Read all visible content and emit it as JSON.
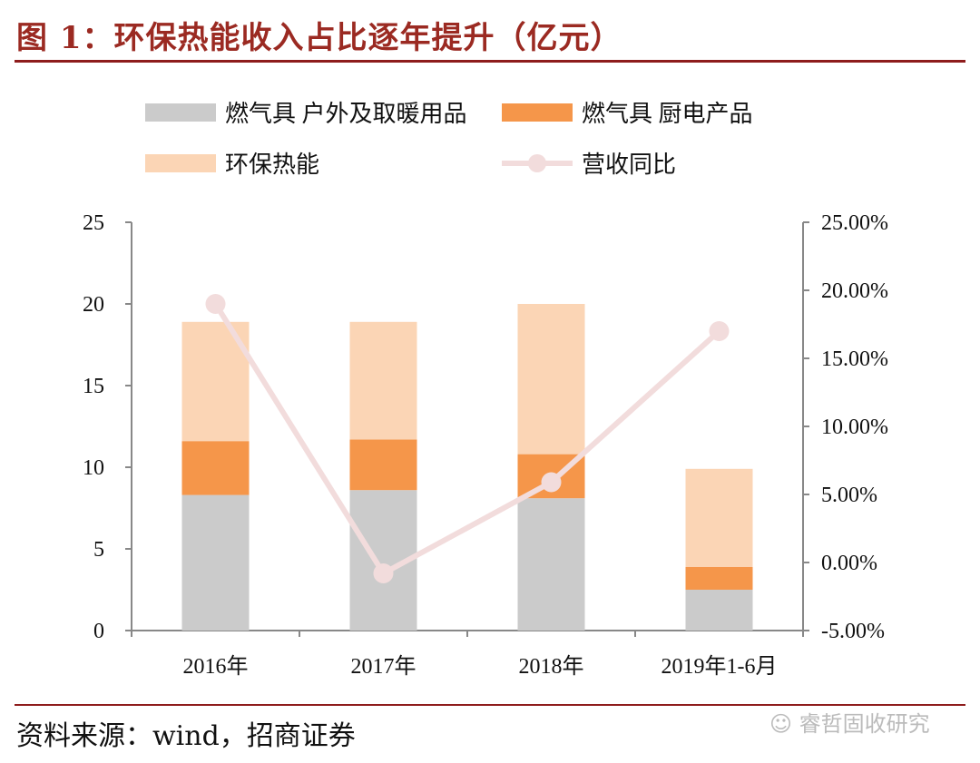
{
  "title": "图 1：环保热能收入占比逐年提升（亿元）",
  "source": "资料来源：wind，招商证券",
  "watermark": "睿哲固收研究",
  "chart_data": {
    "type": "bar",
    "stacked": true,
    "categories": [
      "2016年",
      "2017年",
      "2018年",
      "2019年1-6月"
    ],
    "series": [
      {
        "name": "燃气具 户外及取暖用品",
        "type": "bar",
        "axis": "left",
        "color": "#cbcbcb",
        "values": [
          8.3,
          8.6,
          8.1,
          2.5
        ]
      },
      {
        "name": "燃气具 厨电产品",
        "type": "bar",
        "axis": "left",
        "color": "#f5964a",
        "values": [
          3.3,
          3.1,
          2.7,
          1.4
        ]
      },
      {
        "name": "环保热能",
        "type": "bar",
        "axis": "left",
        "color": "#fbd5b5",
        "values": [
          7.3,
          7.2,
          9.2,
          6.0
        ]
      },
      {
        "name": "营收同比",
        "type": "line",
        "axis": "right",
        "color": "#f2dcdc",
        "values": [
          19.0,
          -0.8,
          5.9,
          17.0
        ]
      }
    ],
    "ylim": [
      0,
      25
    ],
    "yticks": [
      "0",
      "5",
      "10",
      "15",
      "20",
      "25"
    ],
    "y2lim": [
      -5,
      25
    ],
    "y2ticks": [
      "-5.00%",
      "0.00%",
      "5.00%",
      "10.00%",
      "15.00%",
      "20.00%",
      "25.00%"
    ],
    "legend": "top",
    "grid": false
  }
}
